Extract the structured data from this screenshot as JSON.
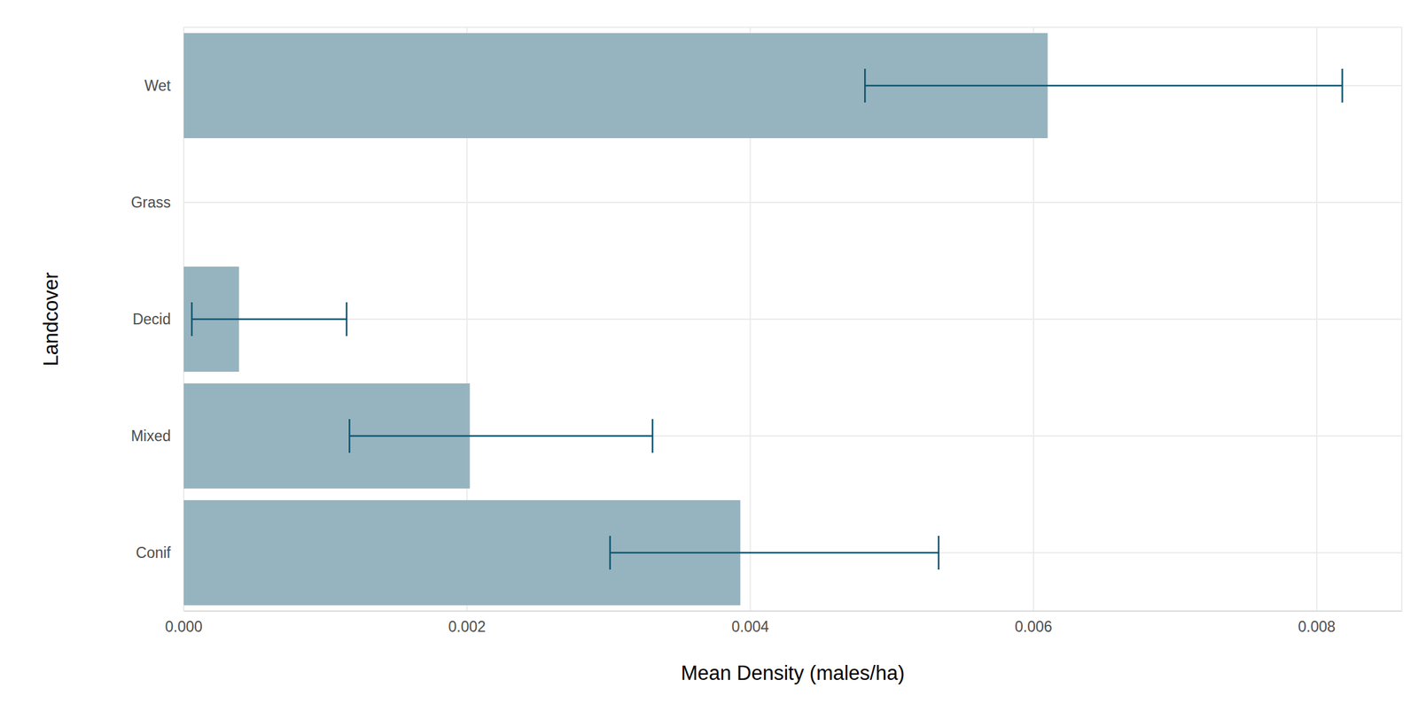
{
  "chart_data": {
    "type": "bar",
    "orientation": "horizontal",
    "x_label": "Mean Density (males/ha)",
    "y_label": "Landcover",
    "categories": [
      "Wet",
      "Grass",
      "Decid",
      "Mixed",
      "Conif"
    ],
    "values": [
      0.0061,
      0,
      0.00039,
      0.00202,
      0.00393
    ],
    "error_low": [
      0.00481,
      0,
      5.7e-05,
      0.00117,
      0.00301
    ],
    "error_high": [
      0.00818,
      0,
      0.00115,
      0.00331,
      0.00533
    ],
    "color": "#96b4bf",
    "xlim": [
      0,
      0.0086
    ],
    "xticks": [
      {
        "value": 0,
        "label": "0.000"
      },
      {
        "value": 0.002,
        "label": "0.002"
      },
      {
        "value": 0.004,
        "label": "0.004"
      },
      {
        "value": 0.006,
        "label": "0.006"
      },
      {
        "value": 0.008,
        "label": "0.008"
      }
    ],
    "grid": true
  }
}
